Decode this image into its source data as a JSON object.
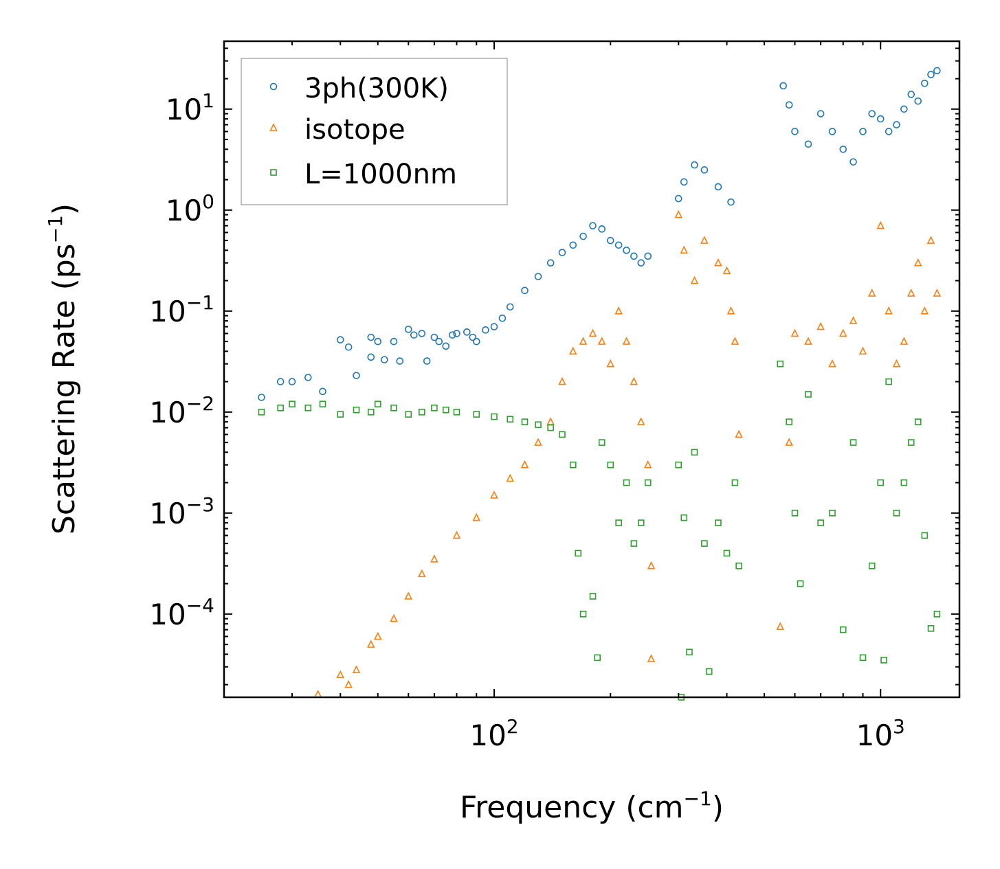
{
  "chart_data": {
    "type": "scatter",
    "title": "",
    "xlabel": {
      "base": "Frequency (cm",
      "sup": "−1",
      "tail": ")"
    },
    "ylabel": {
      "base": "Scattering Rate (ps",
      "sup": "−1",
      "tail": ")"
    },
    "xscale": "log",
    "yscale": "log",
    "xlim": [
      20,
      1600
    ],
    "ylim": [
      1.5e-05,
      47
    ],
    "x_major_ticks": [
      {
        "value": 100,
        "base": "10",
        "exp": "2"
      },
      {
        "value": 1000,
        "base": "10",
        "exp": "3"
      }
    ],
    "y_major_ticks": [
      {
        "value": 10,
        "base": "10",
        "exp": "1"
      },
      {
        "value": 1,
        "base": "10",
        "exp": "0"
      },
      {
        "value": 0.1,
        "base": "10",
        "exp": "−1"
      },
      {
        "value": 0.01,
        "base": "10",
        "exp": "−2"
      },
      {
        "value": 0.001,
        "base": "10",
        "exp": "−3"
      },
      {
        "value": 0.0001,
        "base": "10",
        "exp": "−4"
      }
    ],
    "legend_position": "upper-left",
    "series": [
      {
        "name": "3ph(300K)",
        "marker": "circle",
        "color": "#1f77b4",
        "points": [
          [
            25,
            0.014
          ],
          [
            28,
            0.02
          ],
          [
            30,
            0.02
          ],
          [
            33,
            0.022
          ],
          [
            36,
            0.016
          ],
          [
            40,
            0.052
          ],
          [
            42,
            0.044
          ],
          [
            44,
            0.023
          ],
          [
            48,
            0.055
          ],
          [
            48,
            0.035
          ],
          [
            50,
            0.05
          ],
          [
            52,
            0.033
          ],
          [
            55,
            0.05
          ],
          [
            57,
            0.032
          ],
          [
            60,
            0.066
          ],
          [
            62,
            0.058
          ],
          [
            65,
            0.06
          ],
          [
            67,
            0.032
          ],
          [
            70,
            0.055
          ],
          [
            72,
            0.05
          ],
          [
            75,
            0.045
          ],
          [
            78,
            0.058
          ],
          [
            80,
            0.06
          ],
          [
            85,
            0.062
          ],
          [
            88,
            0.055
          ],
          [
            90,
            0.05
          ],
          [
            95,
            0.065
          ],
          [
            100,
            0.07
          ],
          [
            105,
            0.085
          ],
          [
            110,
            0.11
          ],
          [
            120,
            0.16
          ],
          [
            130,
            0.22
          ],
          [
            140,
            0.3
          ],
          [
            150,
            0.38
          ],
          [
            160,
            0.45
          ],
          [
            170,
            0.55
          ],
          [
            180,
            0.7
          ],
          [
            190,
            0.65
          ],
          [
            200,
            0.5
          ],
          [
            210,
            0.45
          ],
          [
            220,
            0.4
          ],
          [
            230,
            0.35
          ],
          [
            240,
            0.3
          ],
          [
            250,
            0.35
          ],
          [
            300,
            1.3
          ],
          [
            310,
            1.9
          ],
          [
            330,
            2.8
          ],
          [
            350,
            2.5
          ],
          [
            380,
            1.7
          ],
          [
            410,
            1.2
          ],
          [
            560,
            17
          ],
          [
            580,
            11
          ],
          [
            600,
            6
          ],
          [
            650,
            4.5
          ],
          [
            700,
            9
          ],
          [
            750,
            6
          ],
          [
            800,
            4
          ],
          [
            850,
            3
          ],
          [
            900,
            6
          ],
          [
            950,
            9
          ],
          [
            1000,
            8
          ],
          [
            1050,
            6
          ],
          [
            1100,
            7
          ],
          [
            1150,
            10
          ],
          [
            1200,
            14
          ],
          [
            1250,
            12
          ],
          [
            1300,
            18
          ],
          [
            1350,
            22
          ],
          [
            1400,
            24
          ]
        ]
      },
      {
        "name": "isotope",
        "marker": "triangle",
        "color": "#ff7f0e",
        "points": [
          [
            35,
            1.6e-05
          ],
          [
            40,
            2.5e-05
          ],
          [
            42,
            2e-05
          ],
          [
            44,
            2.8e-05
          ],
          [
            48,
            5e-05
          ],
          [
            50,
            6e-05
          ],
          [
            55,
            9e-05
          ],
          [
            60,
            0.00015
          ],
          [
            65,
            0.00025
          ],
          [
            70,
            0.00035
          ],
          [
            80,
            0.0006
          ],
          [
            90,
            0.0009
          ],
          [
            100,
            0.0015
          ],
          [
            110,
            0.0022
          ],
          [
            120,
            0.003
          ],
          [
            130,
            0.005
          ],
          [
            140,
            0.008
          ],
          [
            150,
            0.02
          ],
          [
            160,
            0.04
          ],
          [
            170,
            0.05
          ],
          [
            180,
            0.06
          ],
          [
            190,
            0.05
          ],
          [
            200,
            0.03
          ],
          [
            210,
            0.1
          ],
          [
            220,
            0.05
          ],
          [
            230,
            0.02
          ],
          [
            240,
            0.008
          ],
          [
            250,
            0.003
          ],
          [
            255,
            0.0003
          ],
          [
            255,
            3.6e-05
          ],
          [
            300,
            0.9
          ],
          [
            310,
            0.4
          ],
          [
            330,
            0.2
          ],
          [
            350,
            0.5
          ],
          [
            380,
            0.3
          ],
          [
            400,
            0.25
          ],
          [
            410,
            0.1
          ],
          [
            420,
            0.05
          ],
          [
            430,
            0.006
          ],
          [
            550,
            7.5e-05
          ],
          [
            580,
            0.005
          ],
          [
            600,
            0.06
          ],
          [
            650,
            0.05
          ],
          [
            700,
            0.07
          ],
          [
            750,
            0.03
          ],
          [
            800,
            0.06
          ],
          [
            850,
            0.08
          ],
          [
            900,
            0.04
          ],
          [
            950,
            0.15
          ],
          [
            1000,
            0.7
          ],
          [
            1050,
            0.1
          ],
          [
            1100,
            0.03
          ],
          [
            1150,
            0.05
          ],
          [
            1200,
            0.15
          ],
          [
            1250,
            0.3
          ],
          [
            1300,
            0.1
          ],
          [
            1350,
            0.5
          ],
          [
            1400,
            0.15
          ]
        ]
      },
      {
        "name": "L=1000nm",
        "marker": "square",
        "color": "#2ca02c",
        "points": [
          [
            25,
            0.01
          ],
          [
            28,
            0.011
          ],
          [
            30,
            0.012
          ],
          [
            33,
            0.011
          ],
          [
            36,
            0.012
          ],
          [
            40,
            0.0095
          ],
          [
            44,
            0.0105
          ],
          [
            48,
            0.01
          ],
          [
            50,
            0.012
          ],
          [
            55,
            0.011
          ],
          [
            60,
            0.0095
          ],
          [
            65,
            0.01
          ],
          [
            70,
            0.011
          ],
          [
            75,
            0.0105
          ],
          [
            80,
            0.01
          ],
          [
            90,
            0.0095
          ],
          [
            100,
            0.009
          ],
          [
            110,
            0.0085
          ],
          [
            120,
            0.008
          ],
          [
            130,
            0.0075
          ],
          [
            140,
            0.007
          ],
          [
            150,
            0.006
          ],
          [
            160,
            0.003
          ],
          [
            165,
            0.0004
          ],
          [
            170,
            0.0001
          ],
          [
            180,
            0.00015
          ],
          [
            185,
            3.7e-05
          ],
          [
            190,
            0.005
          ],
          [
            200,
            0.003
          ],
          [
            210,
            0.0008
          ],
          [
            220,
            0.002
          ],
          [
            230,
            0.0005
          ],
          [
            240,
            0.0008
          ],
          [
            250,
            0.002
          ],
          [
            300,
            0.003
          ],
          [
            305,
            1.5e-05
          ],
          [
            310,
            0.0009
          ],
          [
            320,
            4.2e-05
          ],
          [
            330,
            0.004
          ],
          [
            350,
            0.0005
          ],
          [
            360,
            2.7e-05
          ],
          [
            380,
            0.0008
          ],
          [
            400,
            0.0004
          ],
          [
            420,
            0.002
          ],
          [
            430,
            0.0003
          ],
          [
            550,
            0.03
          ],
          [
            580,
            0.008
          ],
          [
            600,
            0.001
          ],
          [
            620,
            0.0002
          ],
          [
            650,
            0.015
          ],
          [
            700,
            0.0008
          ],
          [
            750,
            0.001
          ],
          [
            800,
            7e-05
          ],
          [
            850,
            0.005
          ],
          [
            900,
            3.7e-05
          ],
          [
            950,
            0.0003
          ],
          [
            1000,
            0.002
          ],
          [
            1020,
            3.5e-05
          ],
          [
            1050,
            0.02
          ],
          [
            1100,
            0.001
          ],
          [
            1150,
            0.002
          ],
          [
            1200,
            0.005
          ],
          [
            1250,
            0.008
          ],
          [
            1300,
            0.0006
          ],
          [
            1350,
            7.2e-05
          ],
          [
            1400,
            0.0001
          ]
        ]
      }
    ]
  }
}
